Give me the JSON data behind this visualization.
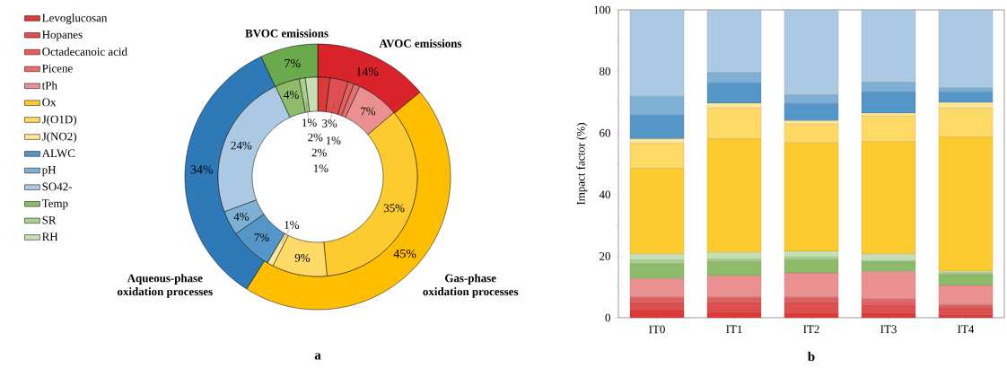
{
  "chart_data": [
    {
      "type": "donut",
      "categories": [
        "AVOC emissions",
        "Gas-phase oxidation processes",
        "Aqueous-phase oxidation processes",
        "BVOC emissions"
      ],
      "values": [
        14,
        45,
        34,
        7
      ],
      "colors": [
        "#d8232a",
        "#ffbf00",
        "#2e7ab9",
        "#6aaa4c"
      ],
      "value_labels": [
        "14%",
        "45%",
        "34%",
        "7%"
      ],
      "annotations": [
        "a"
      ]
    },
    {
      "type": "donut",
      "categories": [
        "Levoglucosan",
        "Hopanes",
        "Octadecanoic acid",
        "Picene",
        "tPh",
        "Ox",
        "J(O1D)",
        "J(NO2)",
        "ALWC",
        "pH",
        "SO42-",
        "Temp",
        "SR",
        "RH"
      ],
      "values": [
        2,
        3,
        1,
        1,
        7,
        35,
        9,
        1,
        7,
        4,
        24,
        4,
        1,
        2
      ],
      "colors": [
        "#dc3a3a",
        "#e04f4f",
        "#e35f5f",
        "#e67070",
        "#eb9090",
        "#fecb2f",
        "#fed965",
        "#ffe699",
        "#5596c8",
        "#7eafd5",
        "#abc9e2",
        "#8dbb6a",
        "#a9d08e",
        "#c6e0b4"
      ],
      "value_labels": [
        "2%",
        "3%",
        "1%",
        "1%",
        "7%",
        "35%",
        "9%",
        "1%",
        "7%",
        "4%",
        "24%",
        "4%",
        "1%",
        "2%"
      ],
      "legend": "left"
    },
    {
      "type": "bar",
      "stacked": true,
      "categories": [
        "IT0",
        "IT1",
        "IT2",
        "IT3",
        "IT4"
      ],
      "ylabel": "Impact factor (%)",
      "ylim": [
        0,
        100
      ],
      "yticks": [
        0,
        20,
        40,
        60,
        80,
        100
      ],
      "annotations": [
        "b"
      ],
      "series": [
        {
          "color": "#dc3a3a",
          "values": [
            2.7,
            2.0,
            1.7,
            1.5,
            1.0
          ]
        },
        {
          "color": "#e04f4f",
          "values": [
            2.3,
            2.7,
            3.0,
            2.7,
            1.9
          ]
        },
        {
          "color": "#e35f5f",
          "values": [
            1.1,
            1.4,
            1.4,
            1.3,
            0.9
          ]
        },
        {
          "color": "#e67070",
          "values": [
            0.6,
            0.6,
            0.6,
            0.6,
            0.5
          ]
        },
        {
          "color": "#eb9090",
          "values": [
            6.0,
            7.0,
            7.9,
            8.9,
            6.2
          ]
        },
        {
          "color": "#8dbb6a",
          "values": [
            4.8,
            4.6,
            4.3,
            3.1,
            3.5
          ]
        },
        {
          "color": "#a9d08e",
          "values": [
            1.2,
            0.8,
            0.8,
            0.5,
            0.6
          ]
        },
        {
          "color": "#c6e0b4",
          "values": [
            2.1,
            2.1,
            1.9,
            2.2,
            0.5
          ]
        },
        {
          "color": "#fecb2f",
          "values": [
            27.7,
            36.8,
            35.2,
            36.4,
            43.5
          ]
        },
        {
          "color": "#fed965",
          "values": [
            8.1,
            10.1,
            6.1,
            8.3,
            9.5
          ]
        },
        {
          "color": "#ffe699",
          "values": [
            1.5,
            1.6,
            1.1,
            1.0,
            1.8
          ]
        },
        {
          "color": "#5596c8",
          "values": [
            7.7,
            6.6,
            5.6,
            6.9,
            3.5
          ]
        },
        {
          "color": "#7eafd5",
          "values": [
            6.1,
            3.3,
            2.8,
            3.1,
            1.2
          ]
        },
        {
          "color": "#abc9e2",
          "values": [
            28.1,
            20.4,
            27.6,
            23.5,
            25.4
          ]
        }
      ]
    }
  ]
}
